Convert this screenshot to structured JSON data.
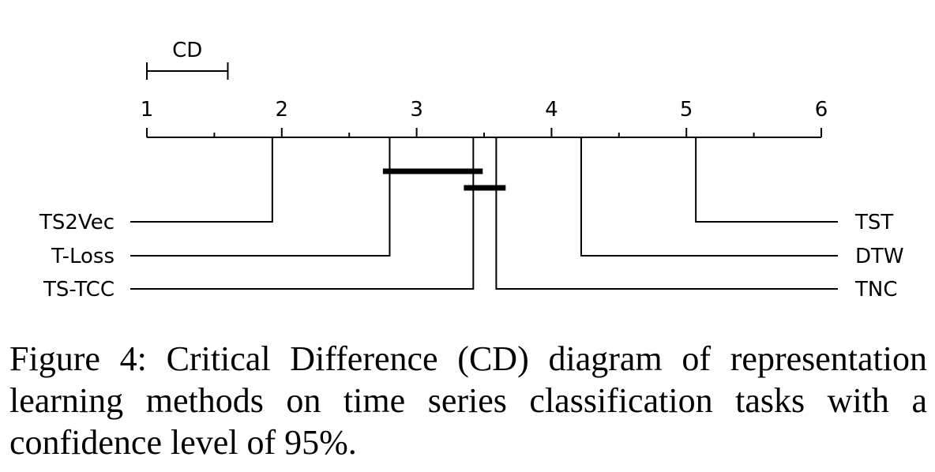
{
  "chart_data": {
    "type": "critical-difference",
    "cd_label": "CD",
    "cd_value": 0.6,
    "axis": {
      "min": 1,
      "max": 6,
      "tick_labels": [
        "1",
        "2",
        "3",
        "4",
        "5",
        "6"
      ],
      "minor_ticks": [
        1.5,
        2.5,
        3.5,
        4.5,
        5.5
      ]
    },
    "methods": [
      {
        "name": "TS2Vec",
        "rank": 1.93,
        "side": "left"
      },
      {
        "name": "T-Loss",
        "rank": 2.8,
        "side": "left"
      },
      {
        "name": "TS-TCC",
        "rank": 3.42,
        "side": "left"
      },
      {
        "name": "TNC",
        "rank": 3.59,
        "side": "right"
      },
      {
        "name": "DTW",
        "rank": 4.22,
        "side": "right"
      },
      {
        "name": "TST",
        "rank": 5.07,
        "side": "right"
      }
    ],
    "cliques": [
      {
        "from": 2.75,
        "to": 3.49
      },
      {
        "from": 3.35,
        "to": 3.66
      }
    ]
  },
  "caption": "Figure 4: Critical Difference (CD) diagram of representation learning methods on time series classification tasks with a confidence level of 95%."
}
